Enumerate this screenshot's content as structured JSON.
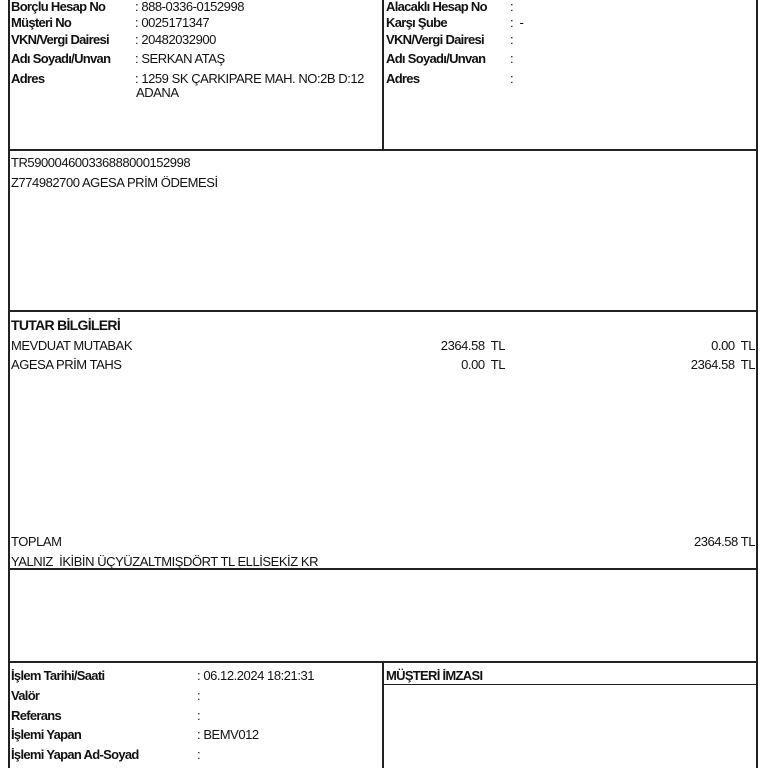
{
  "debtor": {
    "rows": [
      {
        "label": "Borçlu Hesap No",
        "value": ": 888-0336-0152998"
      },
      {
        "label": "Müşteri No",
        "value": ": 0025171347"
      },
      {
        "label": "VKN/Vergi Dairesi",
        "value": ": 20482032900"
      },
      {
        "label": "Adı Soyadı/Unvan",
        "value": ": SERKAN ATAŞ"
      },
      {
        "label": "Adres",
        "value": ": 1259 SK ÇARKIPARE MAH. NO:2B D:12",
        "value2": "ADANA"
      }
    ]
  },
  "creditor": {
    "rows": [
      {
        "label": "Alacaklı Hesap No",
        "value": ":"
      },
      {
        "label": "Karşı Şube",
        "value": ":  -"
      },
      {
        "label": "VKN/Vergi Dairesi",
        "value": ":"
      },
      {
        "label": "Adı Soyadı/Unvan",
        "value": ":"
      },
      {
        "label": "Adres",
        "value": ":"
      }
    ]
  },
  "description": {
    "iban": "TR590004600336888000152998",
    "text": "Z774982700 AGESA PRİM ÖDEMESİ"
  },
  "amounts": {
    "title": "TUTAR BİLGİLERİ",
    "rows": [
      {
        "label": "MEVDUAT MUTABAK",
        "debit": "2364.58  TL",
        "credit": "0.00  TL"
      },
      {
        "label": "AGESA PRİM TAHS",
        "debit": "0.00  TL",
        "credit": "2364.58  TL"
      }
    ],
    "total_label": "TOPLAM",
    "total_value": "2364.58 TL",
    "in_words": "YALNIZ  İKİBİN ÜÇYÜZALTMIŞDÖRT TL ELLİSEKİZ KR"
  },
  "transaction": {
    "rows": [
      {
        "label": "İşlem Tarihi/Saati",
        "value": ": 06.12.2024 18:21:31"
      },
      {
        "label": "Valör",
        "value": ":"
      },
      {
        "label": "Referans",
        "value": ":"
      },
      {
        "label": "İşlemi Yapan",
        "value": ": BEMV012"
      },
      {
        "label": "İşlemi Yapan Ad-Soyad",
        "value": ":"
      }
    ],
    "signature_label": "MÜŞTERİ İMZASI"
  }
}
